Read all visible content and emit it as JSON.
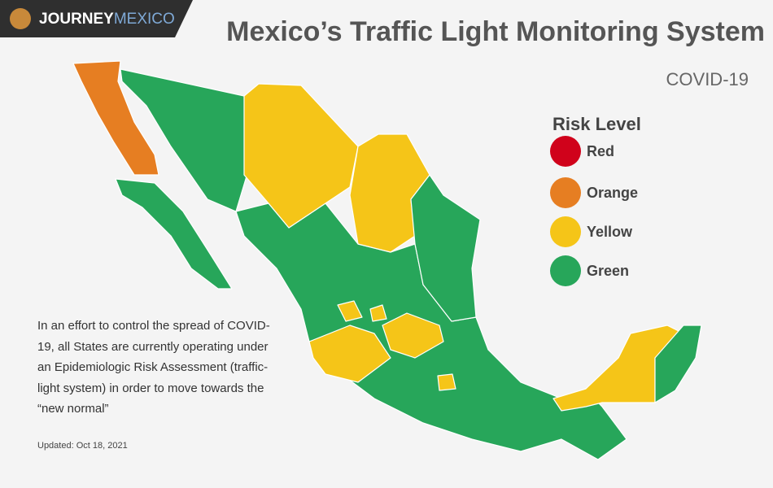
{
  "header": {
    "logo_primary": "JOURNEY",
    "logo_secondary": "MEXICO",
    "title": "Mexico’s Traffic Light Monitoring System",
    "subtitle": "COVID-19"
  },
  "legend": {
    "title": "Risk Level",
    "items": [
      {
        "label": "Red",
        "color": "#d0021b"
      },
      {
        "label": "Orange",
        "color": "#e67e22"
      },
      {
        "label": "Yellow",
        "color": "#f5c518"
      },
      {
        "label": "Green",
        "color": "#27a65a"
      }
    ]
  },
  "description": "In an effort to control the spread of COVID-19, all States are currently operating under an Epidemiologic Risk Assessment (traffic-light system) in order to move towards the “new normal”",
  "updated": "Updated: Oct 18,  2021"
}
